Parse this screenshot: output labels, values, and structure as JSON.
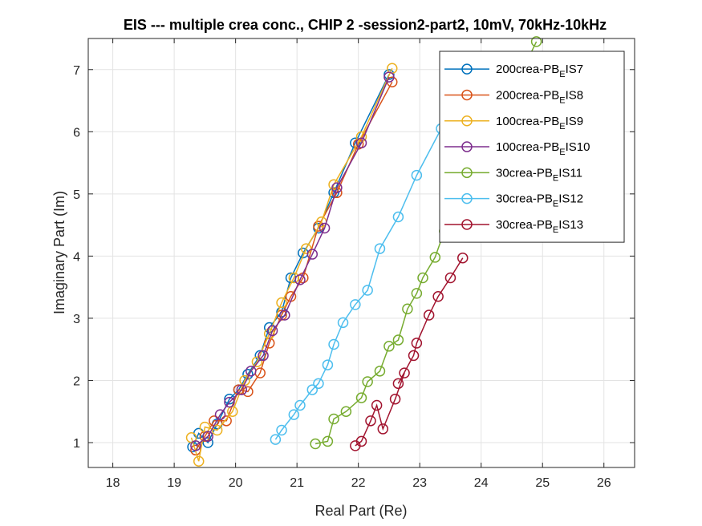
{
  "chart_data": {
    "type": "scatter",
    "title": "EIS --- multiple crea conc., CHIP 2 -session2-part2, 10mV, 70kHz-10kHz",
    "xlabel": "Real Part (Re)",
    "ylabel": "Imaginary Part (Im)",
    "xlim": [
      17.6,
      26.5
    ],
    "ylim": [
      0.6,
      7.5
    ],
    "xticks": [
      18,
      19,
      20,
      21,
      22,
      23,
      24,
      25,
      26
    ],
    "yticks": [
      1,
      2,
      3,
      4,
      5,
      6,
      7
    ],
    "grid": true,
    "legend_position": "top-right",
    "series": [
      {
        "name_main": "200crea-PB",
        "name_sub": "E",
        "name_tail": "IS7",
        "color": "#0072BD",
        "x": [
          19.3,
          19.4,
          19.55,
          19.7,
          19.9,
          20.05,
          20.2,
          20.4,
          20.55,
          20.75,
          20.9,
          21.1,
          21.35,
          21.6,
          21.95,
          22.5
        ],
        "y": [
          0.93,
          1.15,
          1.0,
          1.3,
          1.7,
          1.85,
          2.1,
          2.4,
          2.85,
          3.1,
          3.65,
          4.05,
          4.45,
          5.02,
          5.82,
          6.92
        ]
      },
      {
        "name_main": "200crea-PB",
        "name_sub": "E",
        "name_tail": "IS8",
        "color": "#D95319",
        "x": [
          19.35,
          19.5,
          19.65,
          19.85,
          20.05,
          20.2,
          20.4,
          20.55,
          20.75,
          20.9,
          21.1,
          21.35,
          21.65,
          22.0,
          22.55
        ],
        "y": [
          0.88,
          1.1,
          1.35,
          1.35,
          1.85,
          1.82,
          2.12,
          2.6,
          3.05,
          3.35,
          3.65,
          4.48,
          5.02,
          5.8,
          6.8
        ]
      },
      {
        "name_main": "100crea-PB",
        "name_sub": "E",
        "name_tail": "IS9",
        "color": "#EDB120",
        "x": [
          19.28,
          19.4,
          19.5,
          19.7,
          19.95,
          20.15,
          20.35,
          20.55,
          20.75,
          20.95,
          21.15,
          21.4,
          21.6,
          22.05,
          22.55
        ],
        "y": [
          1.08,
          0.7,
          1.25,
          1.2,
          1.5,
          2.0,
          2.3,
          2.75,
          3.25,
          3.65,
          4.12,
          4.55,
          5.15,
          5.92,
          7.02
        ]
      },
      {
        "name_main": "100crea-PB",
        "name_sub": "E",
        "name_tail": "IS10",
        "color": "#7E2F8E",
        "x": [
          19.35,
          19.55,
          19.75,
          19.9,
          20.1,
          20.25,
          20.45,
          20.6,
          20.8,
          21.05,
          21.25,
          21.45,
          21.65,
          22.05,
          22.5
        ],
        "y": [
          0.95,
          1.1,
          1.45,
          1.65,
          1.85,
          2.15,
          2.4,
          2.8,
          3.05,
          3.62,
          4.03,
          4.45,
          5.1,
          5.82,
          6.88
        ]
      },
      {
        "name_main": "30crea-PB",
        "name_sub": "E",
        "name_tail": "IS11",
        "color": "#77AC30",
        "x": [
          21.3,
          21.5,
          21.6,
          21.8,
          22.05,
          22.15,
          22.35,
          22.5,
          22.65,
          22.8,
          22.95,
          23.05,
          23.25,
          23.4,
          24.9
        ],
        "y": [
          0.98,
          1.02,
          1.38,
          1.5,
          1.72,
          1.98,
          2.15,
          2.55,
          2.65,
          3.15,
          3.4,
          3.65,
          3.98,
          4.4,
          7.45
        ]
      },
      {
        "name_main": "30crea-PB",
        "name_sub": "E",
        "name_tail": "IS12",
        "color": "#4DBEEE",
        "x": [
          20.65,
          20.75,
          20.95,
          21.05,
          21.25,
          21.35,
          21.5,
          21.6,
          21.75,
          21.95,
          22.15,
          22.35,
          22.65,
          22.95,
          23.35
        ],
        "y": [
          1.05,
          1.2,
          1.45,
          1.6,
          1.85,
          1.95,
          2.25,
          2.58,
          2.93,
          3.22,
          3.45,
          4.12,
          4.63,
          5.3,
          6.05
        ]
      },
      {
        "name_main": "30crea-PB",
        "name_sub": "E",
        "name_tail": "IS13",
        "color": "#A2142F",
        "x": [
          21.95,
          22.05,
          22.2,
          22.3,
          22.4,
          22.6,
          22.75,
          22.65,
          22.9,
          22.95,
          23.15,
          23.3,
          23.5,
          23.7
        ],
        "y": [
          0.95,
          1.02,
          1.35,
          1.6,
          1.22,
          1.7,
          2.12,
          1.95,
          2.4,
          2.6,
          3.05,
          3.35,
          3.65,
          3.97
        ]
      }
    ]
  }
}
